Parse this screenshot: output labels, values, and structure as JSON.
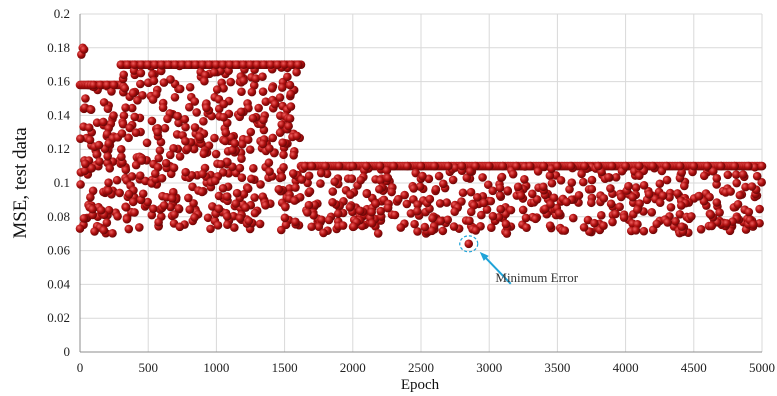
{
  "chart_data": {
    "type": "scatter",
    "xlabel": "Epoch",
    "ylabel": "MSE, test data",
    "xlim": [
      0,
      5000
    ],
    "ylim": [
      0,
      0.2
    ],
    "x_ticks": [
      "0",
      "500",
      "1000",
      "1500",
      "2000",
      "2500",
      "3000",
      "3500",
      "4000",
      "4500",
      "5000"
    ],
    "y_ticks": [
      "0",
      "0.02",
      "0.04",
      "0.06",
      "0.08",
      "0.1",
      "0.12",
      "0.14",
      "0.16",
      "0.18",
      "0.2"
    ],
    "grid": true,
    "legend": "none",
    "marker_color": "#b01010",
    "series": [
      {
        "values_description_free": true,
        "x": [
          0,
          10,
          20,
          30,
          40,
          60,
          80,
          100,
          150,
          200,
          250,
          300,
          350,
          400,
          450,
          500,
          550,
          600,
          650,
          700,
          750,
          800,
          850,
          900,
          950,
          1000,
          1050,
          1100,
          1150,
          1200,
          1250,
          1300,
          1350,
          1400,
          1450,
          1500,
          1550,
          1600,
          1650,
          1700,
          1800,
          1900,
          2000,
          2100,
          2200,
          2300,
          2400,
          2500,
          2600,
          2700,
          2800,
          2850,
          2900,
          3000,
          3100,
          3200,
          3300,
          3400,
          3500,
          3600,
          3700,
          3800,
          3900,
          4000,
          4100,
          4200,
          4300,
          4400,
          4500,
          4600,
          4700,
          4800,
          4900,
          5000
        ],
        "y": [
          0.073,
          0.176,
          0.18,
          0.179,
          0.15,
          0.158,
          0.158,
          0.158,
          0.158,
          0.158,
          0.158,
          0.17,
          0.17,
          0.17,
          0.17,
          0.17,
          0.17,
          0.17,
          0.17,
          0.17,
          0.17,
          0.17,
          0.17,
          0.17,
          0.17,
          0.17,
          0.17,
          0.17,
          0.17,
          0.17,
          0.17,
          0.17,
          0.17,
          0.17,
          0.17,
          0.17,
          0.17,
          0.17,
          0.11,
          0.11,
          0.11,
          0.11,
          0.11,
          0.11,
          0.11,
          0.11,
          0.11,
          0.11,
          0.11,
          0.11,
          0.11,
          0.064,
          0.11,
          0.11,
          0.11,
          0.11,
          0.11,
          0.11,
          0.11,
          0.11,
          0.11,
          0.11,
          0.11,
          0.11,
          0.11,
          0.11,
          0.11,
          0.11,
          0.11,
          0.11,
          0.11,
          0.11,
          0.11,
          0.11
        ]
      }
    ],
    "bands": [
      {
        "x_start": 0,
        "x_end": 300,
        "y_low": 0.07,
        "y_high": 0.158
      },
      {
        "x_start": 300,
        "x_end": 1620,
        "y_low": 0.072,
        "y_high": 0.17
      },
      {
        "x_start": 1620,
        "x_end": 5000,
        "y_low": 0.07,
        "y_high": 0.11
      }
    ],
    "annotation": {
      "text": "Minimum Error",
      "x": 2850,
      "y": 0.064,
      "arrow_color": "#1fa3d8"
    }
  }
}
